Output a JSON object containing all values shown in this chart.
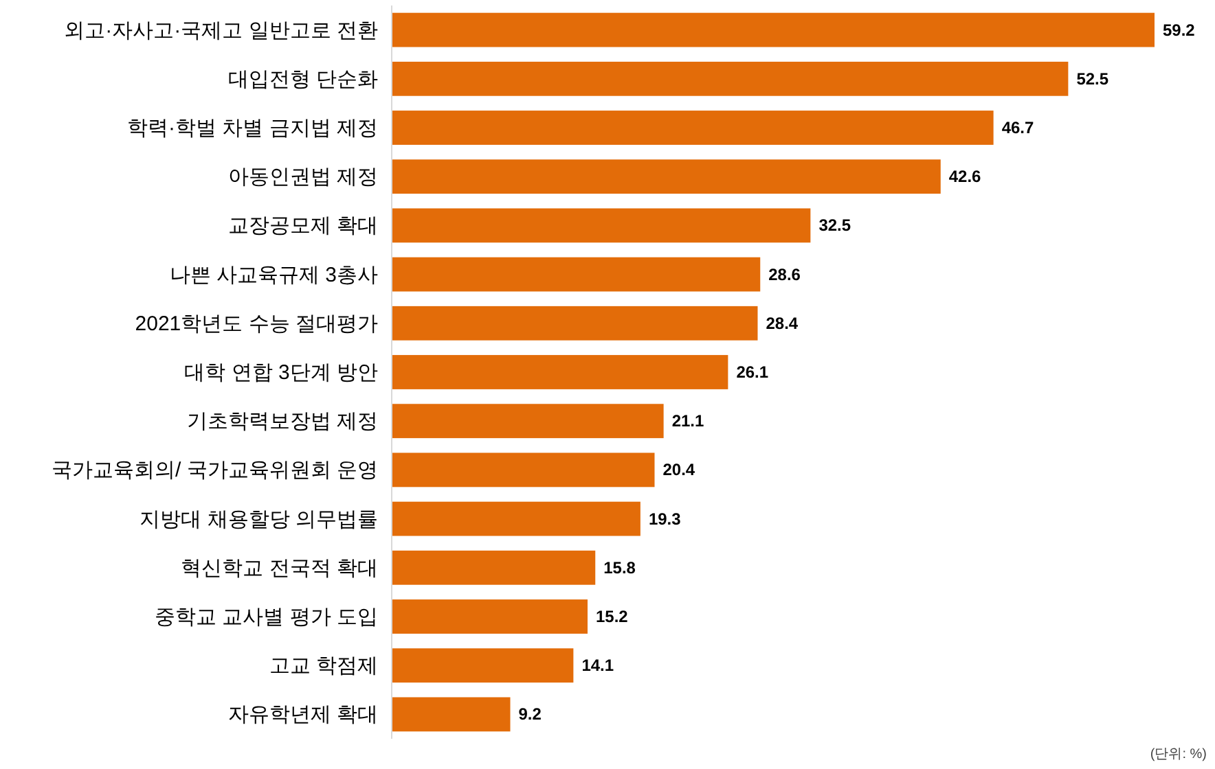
{
  "chart_data": {
    "type": "bar",
    "orientation": "horizontal",
    "categories": [
      "외고·자사고·국제고 일반고로 전환",
      "대입전형 단순화",
      "학력·학벌 차별 금지법 제정",
      "아동인권법 제정",
      "교장공모제 확대",
      "나쁜 사교육규제 3총사",
      "2021학년도 수능 절대평가",
      "대학 연합 3단계 방안",
      "기초학력보장법 제정",
      "국가교육회의/ 국가교육위원회 운영",
      "지방대 채용할당 의무법률",
      "혁신학교 전국적 확대",
      "중학교 교사별 평가 도입",
      "고교 학점제",
      "자유학년제 확대"
    ],
    "values": [
      59.2,
      52.5,
      46.7,
      42.6,
      32.5,
      28.6,
      28.4,
      26.1,
      21.1,
      20.4,
      19.3,
      15.8,
      15.2,
      14.1,
      9.2
    ],
    "color": "#e36c09",
    "data_labels": true,
    "annotations": [
      "(단위: %)"
    ]
  }
}
